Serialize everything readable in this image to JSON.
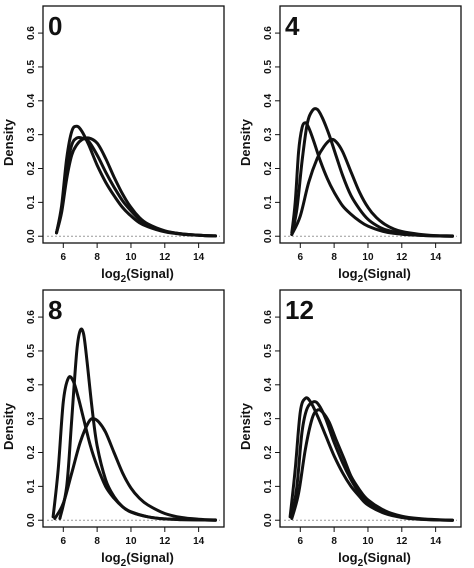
{
  "chart_data": [
    {
      "type": "line",
      "panel_label": "0",
      "xlabel": "log2(Signal)",
      "ylabel": "Density",
      "xlim": [
        4.8,
        15.5
      ],
      "ylim": [
        -0.02,
        0.68
      ],
      "xticks": [
        6,
        8,
        10,
        12,
        14
      ],
      "yticks": [
        0.0,
        0.1,
        0.2,
        0.3,
        0.4,
        0.5,
        0.6
      ],
      "series": [
        {
          "x": [
            5.6,
            5.9,
            6.2,
            6.5,
            6.8,
            7.1,
            7.5,
            8.0,
            8.5,
            9.0,
            9.5,
            10,
            10.5,
            11,
            12,
            13,
            14,
            15
          ],
          "values": [
            0.01,
            0.09,
            0.23,
            0.31,
            0.325,
            0.31,
            0.27,
            0.21,
            0.16,
            0.12,
            0.085,
            0.06,
            0.04,
            0.028,
            0.013,
            0.006,
            0.003,
            0.001
          ]
        },
        {
          "x": [
            5.6,
            5.9,
            6.2,
            6.5,
            6.8,
            7.1,
            7.5,
            8.0,
            8.5,
            9.0,
            9.5,
            10,
            10.5,
            11,
            12,
            13,
            14,
            15
          ],
          "values": [
            0.01,
            0.08,
            0.2,
            0.27,
            0.29,
            0.29,
            0.28,
            0.24,
            0.19,
            0.145,
            0.105,
            0.075,
            0.05,
            0.033,
            0.015,
            0.007,
            0.003,
            0.001
          ]
        },
        {
          "x": [
            5.6,
            5.9,
            6.2,
            6.5,
            6.8,
            7.1,
            7.5,
            8.0,
            8.5,
            9.0,
            9.5,
            10,
            10.5,
            11,
            12,
            13,
            14,
            15
          ],
          "values": [
            0.01,
            0.07,
            0.17,
            0.24,
            0.27,
            0.285,
            0.29,
            0.275,
            0.23,
            0.175,
            0.125,
            0.085,
            0.055,
            0.036,
            0.016,
            0.007,
            0.003,
            0.001
          ]
        }
      ]
    },
    {
      "type": "line",
      "panel_label": "4",
      "xlabel": "log2(Signal)",
      "ylabel": "Density",
      "xlim": [
        4.8,
        15.5
      ],
      "ylim": [
        -0.02,
        0.68
      ],
      "xticks": [
        6,
        8,
        10,
        12,
        14
      ],
      "yticks": [
        0.0,
        0.1,
        0.2,
        0.3,
        0.4,
        0.5,
        0.6
      ],
      "series": [
        {
          "x": [
            5.5,
            5.7,
            5.9,
            6.1,
            6.3,
            6.5,
            6.8,
            7.2,
            7.6,
            8.0,
            8.5,
            9.0,
            9.5,
            10,
            11,
            12,
            13,
            14,
            15
          ],
          "values": [
            0.01,
            0.1,
            0.25,
            0.32,
            0.335,
            0.32,
            0.28,
            0.22,
            0.17,
            0.13,
            0.09,
            0.065,
            0.045,
            0.03,
            0.013,
            0.006,
            0.003,
            0.001,
            0
          ]
        },
        {
          "x": [
            5.5,
            5.8,
            6.1,
            6.4,
            6.7,
            7.0,
            7.3,
            7.7,
            8.1,
            8.5,
            9.0,
            9.5,
            10,
            10.5,
            11,
            12,
            13,
            14,
            15
          ],
          "values": [
            0.005,
            0.08,
            0.22,
            0.33,
            0.37,
            0.375,
            0.35,
            0.3,
            0.24,
            0.18,
            0.12,
            0.08,
            0.05,
            0.032,
            0.02,
            0.008,
            0.003,
            0.001,
            0
          ]
        },
        {
          "x": [
            5.5,
            6.0,
            6.5,
            7.0,
            7.4,
            7.8,
            8.1,
            8.5,
            9.0,
            9.5,
            10,
            10.5,
            11,
            11.5,
            12,
            13,
            14,
            15
          ],
          "values": [
            0.005,
            0.06,
            0.16,
            0.23,
            0.265,
            0.285,
            0.28,
            0.25,
            0.19,
            0.13,
            0.085,
            0.055,
            0.035,
            0.022,
            0.014,
            0.006,
            0.002,
            0.001
          ]
        }
      ]
    },
    {
      "type": "line",
      "panel_label": "8",
      "xlabel": "log2(Signal)",
      "ylabel": "Density",
      "xlim": [
        4.8,
        15.5
      ],
      "ylim": [
        -0.02,
        0.68
      ],
      "xticks": [
        6,
        8,
        10,
        12,
        14
      ],
      "yticks": [
        0.0,
        0.1,
        0.2,
        0.3,
        0.4,
        0.5,
        0.6
      ],
      "series": [
        {
          "x": [
            5.4,
            5.7,
            6.0,
            6.3,
            6.6,
            6.9,
            7.2,
            7.6,
            8.0,
            8.5,
            9.0,
            9.5,
            10,
            11,
            12,
            13,
            14,
            15
          ],
          "values": [
            0.01,
            0.15,
            0.35,
            0.42,
            0.41,
            0.36,
            0.3,
            0.22,
            0.16,
            0.1,
            0.065,
            0.04,
            0.025,
            0.01,
            0.004,
            0.002,
            0.001,
            0
          ]
        },
        {
          "x": [
            5.8,
            6.2,
            6.5,
            6.8,
            7.0,
            7.2,
            7.4,
            7.7,
            8.0,
            8.5,
            9.0,
            9.5,
            10,
            11,
            12,
            13,
            14,
            15
          ],
          "values": [
            0.005,
            0.1,
            0.3,
            0.5,
            0.56,
            0.55,
            0.47,
            0.33,
            0.22,
            0.12,
            0.07,
            0.04,
            0.024,
            0.01,
            0.004,
            0.002,
            0.001,
            0
          ]
        },
        {
          "x": [
            5.5,
            6.0,
            6.5,
            7.0,
            7.5,
            7.8,
            8.1,
            8.5,
            9.0,
            9.5,
            10,
            10.5,
            11,
            12,
            13,
            14,
            15
          ],
          "values": [
            0.005,
            0.05,
            0.14,
            0.23,
            0.29,
            0.3,
            0.29,
            0.26,
            0.2,
            0.14,
            0.095,
            0.065,
            0.045,
            0.02,
            0.008,
            0.003,
            0.001
          ]
        }
      ]
    },
    {
      "type": "line",
      "panel_label": "12",
      "xlabel": "log2(Signal)",
      "ylabel": "Density",
      "xlim": [
        4.8,
        15.5
      ],
      "ylim": [
        -0.02,
        0.68
      ],
      "xticks": [
        6,
        8,
        10,
        12,
        14
      ],
      "yticks": [
        0.0,
        0.1,
        0.2,
        0.3,
        0.4,
        0.5,
        0.6
      ],
      "series": [
        {
          "x": [
            5.4,
            5.7,
            6.0,
            6.3,
            6.6,
            7.0,
            7.5,
            8.0,
            8.5,
            9.0,
            9.5,
            10,
            11,
            12,
            13,
            14,
            15
          ],
          "values": [
            0.01,
            0.15,
            0.32,
            0.36,
            0.35,
            0.31,
            0.25,
            0.19,
            0.14,
            0.1,
            0.07,
            0.045,
            0.02,
            0.008,
            0.003,
            0.001,
            0
          ]
        },
        {
          "x": [
            5.5,
            5.8,
            6.1,
            6.4,
            6.8,
            7.1,
            7.5,
            8.0,
            8.5,
            9.0,
            9.5,
            10,
            11,
            12,
            13,
            14,
            15
          ],
          "values": [
            0.01,
            0.1,
            0.26,
            0.33,
            0.35,
            0.34,
            0.3,
            0.23,
            0.17,
            0.12,
            0.08,
            0.055,
            0.025,
            0.01,
            0.004,
            0.001,
            0
          ]
        },
        {
          "x": [
            5.5,
            5.9,
            6.3,
            6.7,
            7.0,
            7.3,
            7.7,
            8.1,
            8.6,
            9.0,
            9.5,
            10,
            11,
            12,
            13,
            14,
            15
          ],
          "values": [
            0.005,
            0.08,
            0.21,
            0.3,
            0.325,
            0.32,
            0.29,
            0.24,
            0.18,
            0.13,
            0.09,
            0.06,
            0.028,
            0.012,
            0.005,
            0.002,
            0
          ]
        }
      ]
    }
  ]
}
